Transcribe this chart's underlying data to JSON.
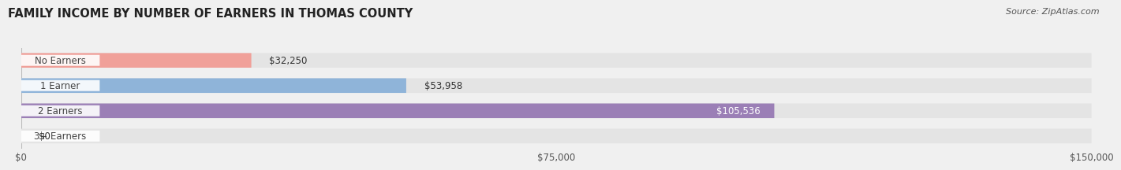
{
  "title": "FAMILY INCOME BY NUMBER OF EARNERS IN THOMAS COUNTY",
  "source": "Source: ZipAtlas.com",
  "categories": [
    "No Earners",
    "1 Earner",
    "2 Earners",
    "3+ Earners"
  ],
  "values": [
    32250,
    53958,
    105536,
    0
  ],
  "bar_colors": [
    "#f0a099",
    "#8fb4d9",
    "#9b7fb6",
    "#72ccc8"
  ],
  "label_colors": [
    "#333333",
    "#333333",
    "#ffffff",
    "#333333"
  ],
  "xlim": [
    0,
    150000
  ],
  "xticks": [
    0,
    75000,
    150000
  ],
  "xtick_labels": [
    "$0",
    "$75,000",
    "$150,000"
  ],
  "background_color": "#f0f0f0",
  "bar_background": "#e4e4e4",
  "title_fontsize": 10.5,
  "source_fontsize": 8,
  "label_fontsize": 8.5,
  "category_fontsize": 8.5,
  "value_fontsize": 8.5,
  "bar_height": 0.58
}
